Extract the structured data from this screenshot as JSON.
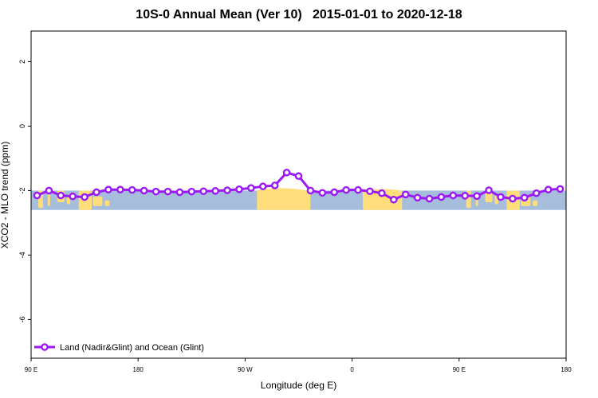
{
  "chart_data": {
    "type": "line",
    "title": "10S-0 Annual Mean (Ver 10)   2015-01-01 to 2020-12-18",
    "xlabel": "Longitude (deg E)",
    "ylabel": "XCO2 - MLO trend (ppm)",
    "x_tick_labels": [
      "90 E",
      "180",
      "90 W",
      "0",
      "90 E",
      "180"
    ],
    "x_ticks": [
      90,
      180,
      270,
      360,
      450,
      540
    ],
    "xlim": [
      90,
      540
    ],
    "y_ticks": [
      2,
      0,
      -2,
      -4,
      -6
    ],
    "y_tick_labels": [
      "2",
      "0",
      "-2",
      "-4",
      "-6"
    ],
    "ylim": [
      -7.2,
      2.95
    ],
    "legend_position": "bottom-left",
    "grid": false,
    "background_map": "world map strip (ocean blue, land yellow), latitude band 10S-0",
    "colors": {
      "series": "#9b19f5",
      "ocean": "#a6bddb",
      "land": "#fedd7a"
    },
    "series": [
      {
        "name": "Land (Nadir&Glint) and Ocean (Glint)",
        "x": [
          95,
          105,
          115,
          125,
          135,
          145,
          155,
          165,
          175,
          185,
          195,
          205,
          215,
          225,
          235,
          245,
          255,
          265,
          275,
          285,
          295,
          305,
          315,
          325,
          335,
          345,
          355,
          365,
          375,
          385,
          395,
          405,
          415,
          425,
          435,
          445,
          455,
          465,
          475,
          485,
          495,
          505,
          515,
          525,
          535
        ],
        "y": [
          -2.15,
          -2.0,
          -2.15,
          -2.18,
          -2.2,
          -2.05,
          -1.97,
          -1.97,
          -1.98,
          -2.0,
          -2.03,
          -2.03,
          -2.05,
          -2.03,
          -2.02,
          -2.01,
          -1.99,
          -1.96,
          -1.92,
          -1.87,
          -1.84,
          -1.44,
          -1.55,
          -2.0,
          -2.07,
          -2.05,
          -1.98,
          -1.98,
          -2.02,
          -2.08,
          -2.28,
          -2.12,
          -2.22,
          -2.25,
          -2.2,
          -2.15,
          -2.16,
          -2.17,
          -1.99,
          -2.2,
          -2.25,
          -2.22,
          -2.08,
          -1.97,
          -1.95
        ]
      }
    ]
  }
}
